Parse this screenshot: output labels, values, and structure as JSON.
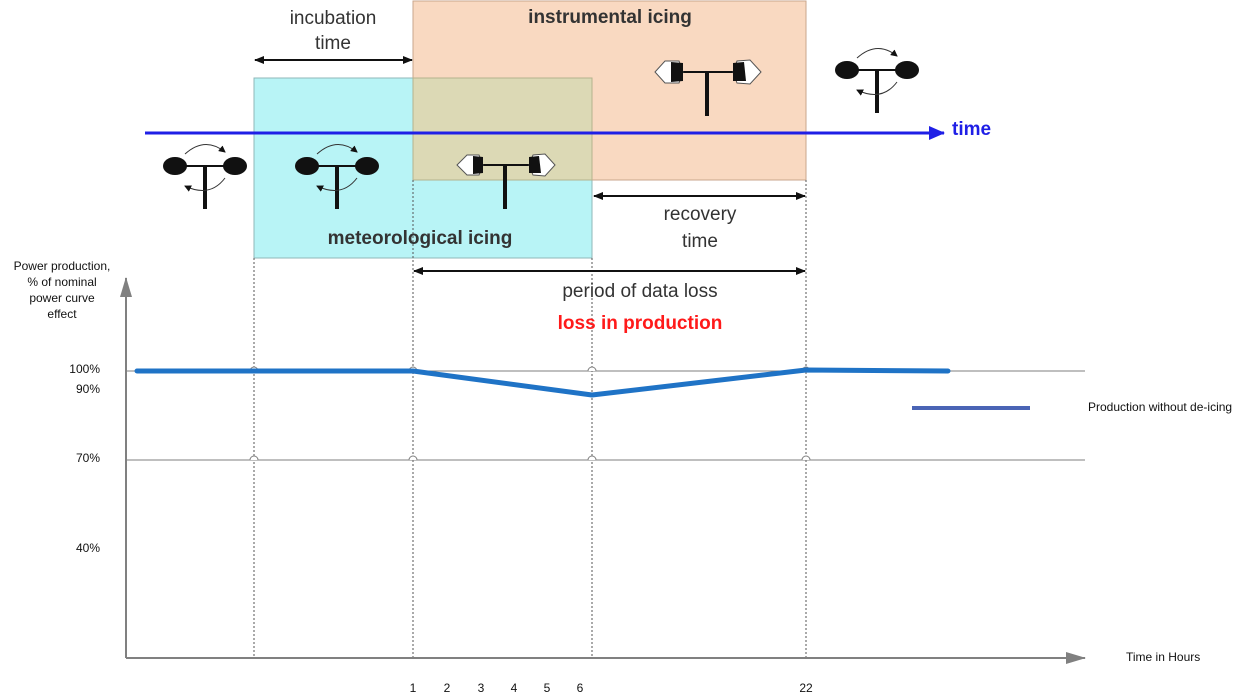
{
  "diagram": {
    "phases": {
      "incubation_line1": "incubation",
      "incubation_line2": "time",
      "instrumental_icing": "instrumental icing",
      "meteorological_icing": "meteorological icing",
      "recovery_line1": "recovery",
      "recovery_line2": "time",
      "period_of_data_loss": "period of data loss",
      "loss_in_production": "loss in production",
      "time_axis_label": "time"
    },
    "colors": {
      "instrumental_box": "#f9d9c1",
      "meteorological_box": "#b8f4f6",
      "overlap_box": "#dcd9b5",
      "time_arrow": "#1f1fe6",
      "loss_text": "#ff1a1a",
      "production_line": "#1f73c6",
      "legend_line": "#4a64b5"
    },
    "icons": [
      "anemometer-icon",
      "anemometer-icon",
      "iced-anemometer-icon",
      "iced-anemometer-icon",
      "anemometer-icon"
    ]
  },
  "chart": {
    "y_axis_line1": "Power production,",
    "y_axis_line2": "% of nominal",
    "y_axis_line3": "power curve",
    "y_axis_line4": "effect",
    "x_axis_label": "Time in Hours",
    "legend_label": "Production without de-icing",
    "y_ticks": [
      "100%",
      "90%",
      "70%",
      "40%"
    ],
    "x_ticks": [
      "1",
      "2",
      "3",
      "4",
      "5",
      "6",
      "22"
    ]
  },
  "chart_data": {
    "type": "line",
    "xlabel": "Time in Hours",
    "ylabel": "Power production, % of nominal power curve effect",
    "y_ticks": [
      100,
      90,
      70,
      40
    ],
    "x_ticks": [
      1,
      2,
      3,
      4,
      5,
      6,
      22
    ],
    "series": [
      {
        "name": "Production without de-icing",
        "points": [
          {
            "t": "start",
            "y": 100
          },
          {
            "t": 1,
            "y": 100
          },
          {
            "t": 6,
            "y": 90
          },
          {
            "t": 22,
            "y": 100
          },
          {
            "t": "end",
            "y": 100
          }
        ]
      }
    ]
  }
}
